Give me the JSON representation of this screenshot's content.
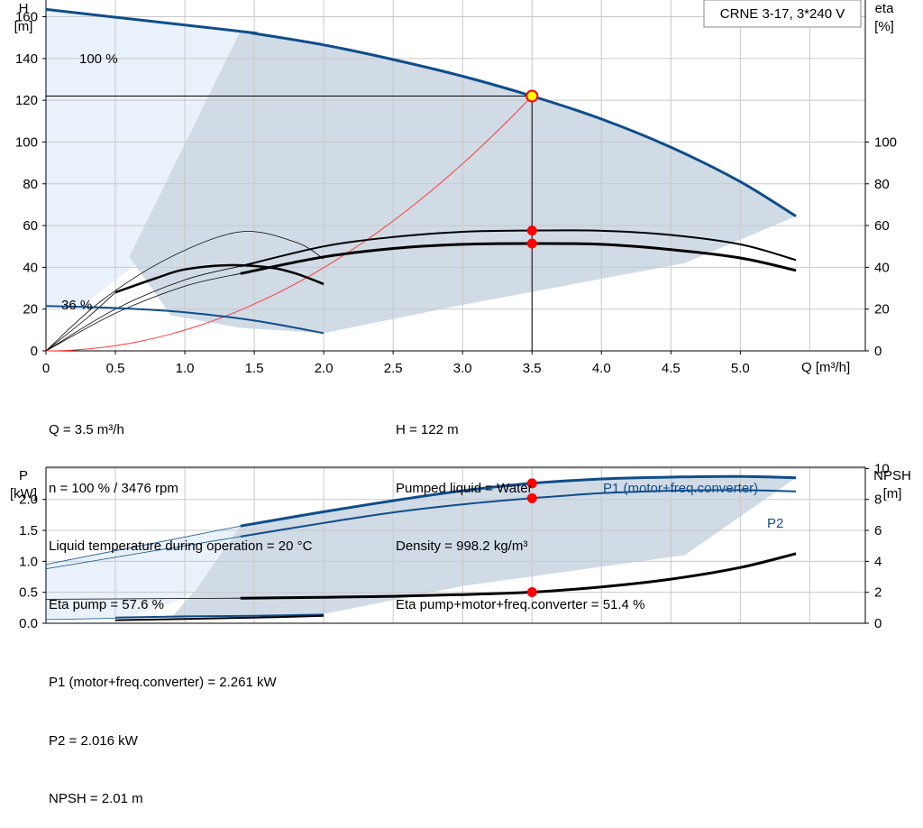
{
  "chart_data": [
    {
      "type": "line",
      "title": "CRNE 3-17, 3*240 V",
      "xlabel": "Q [m³/h]",
      "ylabel_left": [
        "H",
        "[m]"
      ],
      "ylabel_right": [
        "eta",
        "[%]"
      ],
      "xlim": [
        0,
        5.9
      ],
      "xticks": [
        "0",
        "0.5",
        "1.0",
        "1.5",
        "2.0",
        "2.5",
        "3.0",
        "3.5",
        "4.0",
        "4.5",
        "5.0"
      ],
      "ylim_left": [
        0,
        168
      ],
      "yticks_left": [
        "0",
        "20",
        "40",
        "60",
        "80",
        "100",
        "120",
        "140",
        "160"
      ],
      "ylim_right": [
        0,
        168
      ],
      "yticks_right": [
        "0",
        "20",
        "40",
        "60",
        "80",
        "100"
      ],
      "speed_labels": [
        "100 %",
        "36 %"
      ],
      "series": [
        {
          "id": "h-100",
          "x": [
            0,
            1.4,
            1.5,
            2.0,
            2.5,
            3.0,
            3.5,
            4.0,
            4.5,
            5.0,
            5.4
          ],
          "y": [
            163.5,
            153,
            152,
            146.5,
            139.5,
            131.5,
            122,
            111,
            97.5,
            81,
            64.5
          ]
        },
        {
          "id": "h-36",
          "x": [
            0,
            0.5,
            1.0,
            1.5,
            2.0
          ],
          "y": [
            21.5,
            20.5,
            18.5,
            14.5,
            8.5
          ]
        },
        {
          "id": "eta-pump",
          "x": [
            1.4,
            2.0,
            2.5,
            3.0,
            3.5,
            4.0,
            4.5,
            5.0,
            5.4
          ],
          "y": [
            40.5,
            50,
            54.5,
            57,
            57.6,
            57.5,
            55.5,
            51,
            43.5
          ]
        },
        {
          "id": "eta-total",
          "x": [
            1.4,
            2.0,
            2.5,
            3.0,
            3.5,
            4.0,
            4.5,
            5.0,
            5.4
          ],
          "y": [
            37,
            45,
            49,
            51,
            51.4,
            51,
            48.5,
            44.5,
            38.5
          ]
        },
        {
          "id": "eta-pump-36",
          "x": [
            0.5,
            0.8,
            1.0,
            1.3,
            1.6,
            1.8,
            2.0
          ],
          "y": [
            28,
            35,
            39,
            41,
            40,
            37,
            32
          ]
        }
      ],
      "duty_point": {
        "x": 3.5,
        "y": 122
      },
      "marker_points": [
        57.6,
        51.4
      ]
    },
    {
      "type": "line",
      "xlim": [
        0,
        5.9
      ],
      "ylabel_left": [
        "P",
        "[kW]"
      ],
      "ylabel_right": [
        "NPSH",
        "[m]"
      ],
      "ylim_left": [
        0,
        2.52
      ],
      "yticks_left": [
        "0.0",
        "0.5",
        "1.0",
        "1.5",
        "2.0"
      ],
      "ylim_right": [
        0,
        10.08
      ],
      "yticks_right": [
        "0",
        "2",
        "4",
        "6",
        "8",
        "10"
      ],
      "series": [
        {
          "id": "p1",
          "name": "P1 (motor+freq.converter)",
          "x": [
            1.4,
            2.0,
            2.5,
            3.0,
            3.5,
            4.0,
            4.5,
            5.0,
            5.4
          ],
          "y": [
            1.57,
            1.8,
            1.98,
            2.14,
            2.26,
            2.33,
            2.36,
            2.37,
            2.35
          ]
        },
        {
          "id": "p2",
          "name": "P2",
          "x": [
            1.4,
            2.0,
            2.5,
            3.0,
            3.5,
            4.0,
            4.5,
            5.0,
            5.4
          ],
          "y": [
            1.4,
            1.62,
            1.79,
            1.92,
            2.02,
            2.1,
            2.14,
            2.15,
            2.13
          ]
        },
        {
          "id": "npsh",
          "x": [
            1.4,
            2.0,
            2.5,
            3.0,
            3.5,
            4.0,
            4.5,
            5.0,
            5.4
          ],
          "y": [
            1.62,
            1.68,
            1.74,
            1.85,
            2.01,
            2.35,
            2.85,
            3.6,
            4.5
          ]
        }
      ],
      "duty_x": 3.5
    }
  ],
  "info_top": {
    "q": "Q = 3.5 m³/h",
    "n": "n = 100 % / 3476 rpm",
    "temp": "Liquid temperature during operation = 20 °C",
    "eta_pump": "Eta pump = 57.6 %",
    "h": "H = 122 m",
    "liquid": "Pumped liquid = Water",
    "density": "Density = 998.2 kg/m³",
    "eta_total": "Eta pump+motor+freq.converter = 51.4 %"
  },
  "info_bottom": {
    "p1": "P1 (motor+freq.converter) = 2.261 kW",
    "p2": "P2 = 2.016 kW",
    "npsh": "NPSH = 2.01 m"
  },
  "colors": {
    "grid": "#c8c8c8",
    "area_dark": "#d0dbe6",
    "area_light": "#e9f2fb",
    "curve_blue": "#0f4d8a",
    "marker_red": "#ff0000",
    "system_curve": "#ff3b3b",
    "duty_marker_fill": "#ffff00"
  }
}
